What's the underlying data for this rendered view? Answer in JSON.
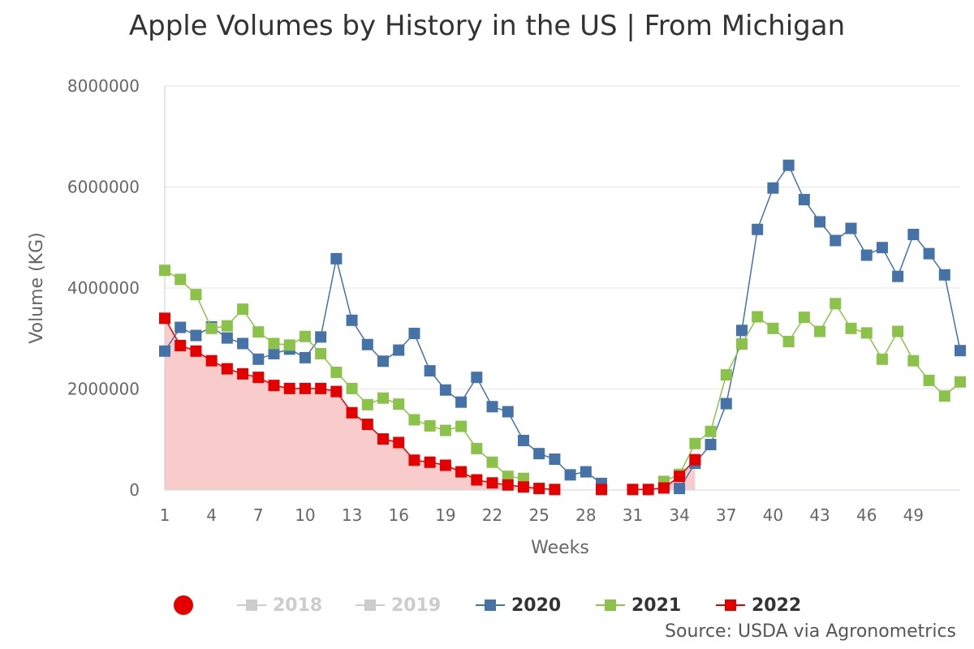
{
  "title": "Apple Volumes by History in the US | From Michigan",
  "source": "Source: USDA via Agronometrics",
  "legend": {
    "items": [
      {
        "label": "2018",
        "color": "#cccccc",
        "visible": false
      },
      {
        "label": "2019",
        "color": "#cccccc",
        "visible": false
      },
      {
        "label": "2020",
        "color": "#4572a7",
        "visible": true
      },
      {
        "label": "2021",
        "color": "#8bc34a",
        "visible": true
      },
      {
        "label": "2022",
        "color": "#e50000",
        "visible": true
      }
    ],
    "dot_color": "#e50000"
  },
  "chart_data": {
    "type": "line",
    "title": "Apple Volumes by History in the US | From Michigan",
    "xlabel": "Weeks",
    "ylabel": "Volume (KG)",
    "xlim": [
      1,
      52
    ],
    "ylim": [
      0,
      8000000
    ],
    "x_ticks": [
      1,
      4,
      7,
      10,
      13,
      16,
      19,
      22,
      25,
      28,
      31,
      34,
      37,
      40,
      43,
      46,
      49
    ],
    "y_ticks": [
      0,
      2000000,
      4000000,
      6000000,
      8000000
    ],
    "y_tick_labels": [
      "0",
      "2000000",
      "4000000",
      "6000000",
      "8000000"
    ],
    "grid": "horizontal",
    "legend_position": "bottom",
    "series": [
      {
        "name": "2020",
        "color": "#4572a7",
        "area": false,
        "points": [
          [
            1,
            2750000
          ],
          [
            2,
            3220000
          ],
          [
            3,
            3060000
          ],
          [
            4,
            3230000
          ],
          [
            5,
            3010000
          ],
          [
            6,
            2900000
          ],
          [
            7,
            2590000
          ],
          [
            8,
            2700000
          ],
          [
            9,
            2790000
          ],
          [
            10,
            2620000
          ],
          [
            11,
            3030000
          ],
          [
            12,
            4580000
          ],
          [
            13,
            3360000
          ],
          [
            14,
            2880000
          ],
          [
            15,
            2550000
          ],
          [
            16,
            2770000
          ],
          [
            17,
            3100000
          ],
          [
            18,
            2360000
          ],
          [
            19,
            1980000
          ],
          [
            20,
            1740000
          ],
          [
            21,
            2230000
          ],
          [
            22,
            1650000
          ],
          [
            23,
            1550000
          ],
          [
            24,
            980000
          ],
          [
            25,
            720000
          ],
          [
            26,
            610000
          ],
          [
            27,
            300000
          ],
          [
            28,
            360000
          ],
          [
            29,
            130000
          ],
          [
            34,
            30000
          ],
          [
            35,
            530000
          ],
          [
            36,
            900000
          ],
          [
            37,
            1710000
          ],
          [
            38,
            3160000
          ],
          [
            39,
            5160000
          ],
          [
            40,
            5980000
          ],
          [
            41,
            6430000
          ],
          [
            42,
            5750000
          ],
          [
            43,
            5310000
          ],
          [
            44,
            4940000
          ],
          [
            45,
            5180000
          ],
          [
            46,
            4650000
          ],
          [
            47,
            4800000
          ],
          [
            48,
            4230000
          ],
          [
            49,
            5060000
          ],
          [
            50,
            4680000
          ],
          [
            51,
            4260000
          ],
          [
            52,
            2760000
          ]
        ]
      },
      {
        "name": "2021",
        "color": "#8bc34a",
        "area": false,
        "points": [
          [
            1,
            4350000
          ],
          [
            2,
            4170000
          ],
          [
            3,
            3870000
          ],
          [
            4,
            3200000
          ],
          [
            5,
            3250000
          ],
          [
            6,
            3580000
          ],
          [
            7,
            3130000
          ],
          [
            8,
            2900000
          ],
          [
            9,
            2870000
          ],
          [
            10,
            3040000
          ],
          [
            11,
            2700000
          ],
          [
            12,
            2330000
          ],
          [
            13,
            2010000
          ],
          [
            14,
            1690000
          ],
          [
            15,
            1820000
          ],
          [
            16,
            1700000
          ],
          [
            17,
            1390000
          ],
          [
            18,
            1270000
          ],
          [
            19,
            1180000
          ],
          [
            20,
            1260000
          ],
          [
            21,
            820000
          ],
          [
            22,
            550000
          ],
          [
            23,
            270000
          ],
          [
            24,
            230000
          ],
          [
            33,
            170000
          ],
          [
            34,
            310000
          ],
          [
            35,
            920000
          ],
          [
            36,
            1160000
          ],
          [
            37,
            2280000
          ],
          [
            38,
            2890000
          ],
          [
            39,
            3430000
          ],
          [
            40,
            3200000
          ],
          [
            41,
            2940000
          ],
          [
            42,
            3420000
          ],
          [
            43,
            3140000
          ],
          [
            44,
            3690000
          ],
          [
            45,
            3200000
          ],
          [
            46,
            3110000
          ],
          [
            47,
            2590000
          ],
          [
            48,
            3140000
          ],
          [
            49,
            2560000
          ],
          [
            50,
            2170000
          ],
          [
            51,
            1860000
          ],
          [
            52,
            2140000
          ]
        ]
      },
      {
        "name": "2022",
        "color": "#e50000",
        "area": true,
        "area_color": "#f9cccc",
        "points": [
          [
            1,
            3400000
          ],
          [
            2,
            2860000
          ],
          [
            3,
            2750000
          ],
          [
            4,
            2560000
          ],
          [
            5,
            2400000
          ],
          [
            6,
            2300000
          ],
          [
            7,
            2230000
          ],
          [
            8,
            2070000
          ],
          [
            9,
            2010000
          ],
          [
            10,
            2010000
          ],
          [
            11,
            2010000
          ],
          [
            12,
            1950000
          ],
          [
            13,
            1530000
          ],
          [
            14,
            1300000
          ],
          [
            15,
            1010000
          ],
          [
            16,
            940000
          ],
          [
            17,
            590000
          ],
          [
            18,
            550000
          ],
          [
            19,
            490000
          ],
          [
            20,
            360000
          ],
          [
            21,
            200000
          ],
          [
            22,
            140000
          ],
          [
            23,
            100000
          ],
          [
            24,
            60000
          ],
          [
            25,
            30000
          ],
          [
            26,
            10000
          ],
          [
            29,
            10000
          ],
          [
            31,
            10000
          ],
          [
            32,
            10000
          ],
          [
            33,
            40000
          ],
          [
            34,
            270000
          ],
          [
            35,
            600000
          ]
        ]
      }
    ]
  }
}
